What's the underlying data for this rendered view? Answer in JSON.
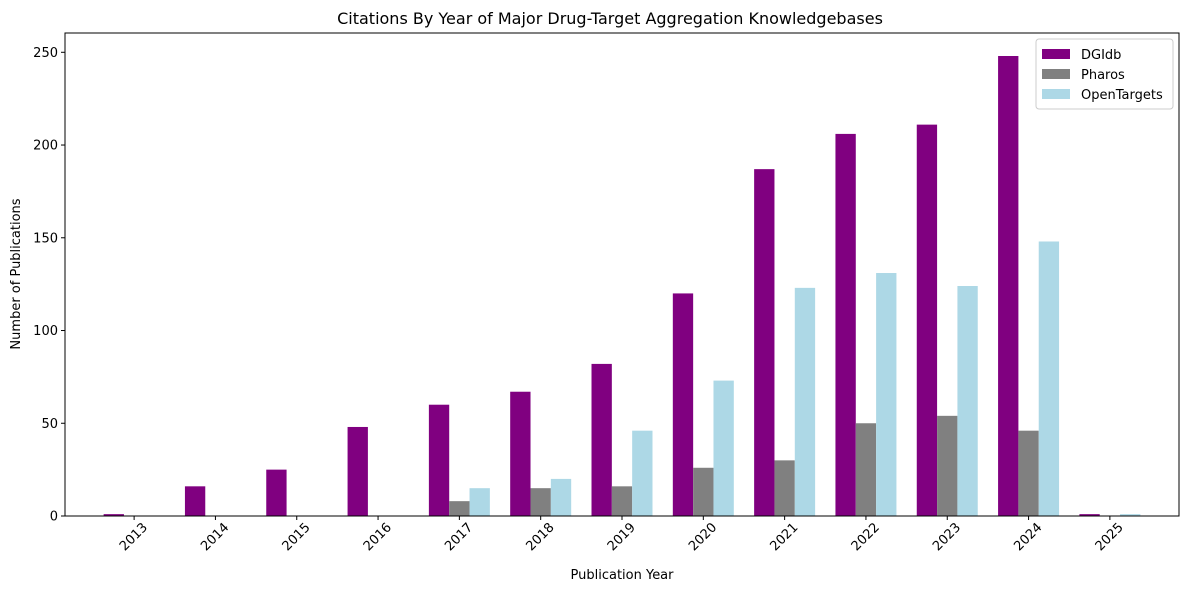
{
  "chart_data": {
    "type": "bar",
    "title": "Citations By Year of Major Drug-Target Aggregation Knowledgebases",
    "xlabel": "Publication Year",
    "ylabel": "Number of Publications",
    "categories": [
      "2013",
      "2014",
      "2015",
      "2016",
      "2017",
      "2018",
      "2019",
      "2020",
      "2021",
      "2022",
      "2023",
      "2024",
      "2025"
    ],
    "series": [
      {
        "name": "DGIdb",
        "color": "#800080",
        "values": [
          1,
          16,
          25,
          48,
          60,
          67,
          82,
          120,
          187,
          206,
          211,
          248,
          1
        ]
      },
      {
        "name": "Pharos",
        "color": "#808080",
        "values": [
          0,
          0,
          0,
          0,
          8,
          15,
          16,
          26,
          30,
          50,
          54,
          46,
          0
        ]
      },
      {
        "name": "OpenTargets",
        "color": "#add8e6",
        "values": [
          0,
          0,
          0,
          0,
          15,
          20,
          46,
          73,
          123,
          131,
          124,
          148,
          1
        ]
      }
    ],
    "ylim": [
      0,
      260.4
    ],
    "yticks": [
      0,
      50,
      100,
      150,
      200,
      250
    ],
    "legend": "top-right",
    "grid": false
  }
}
